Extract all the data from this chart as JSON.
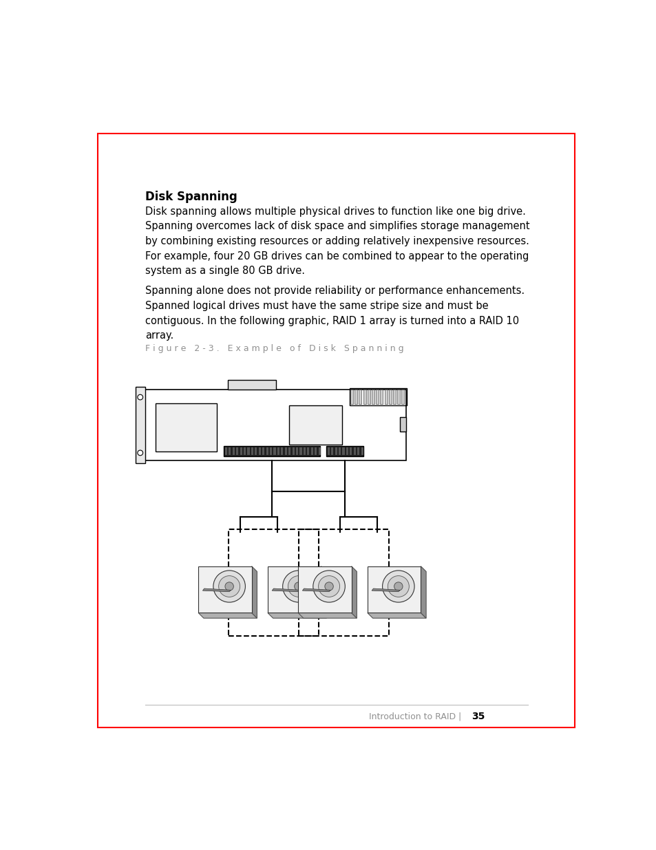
{
  "bg_color": "#ffffff",
  "border_color": "#ff0000",
  "border_linewidth": 1.5,
  "title": "Disk Spanning",
  "title_fontsize": 12,
  "body_text_1": "Disk spanning allows multiple physical drives to function like one big drive.\nSpanning overcomes lack of disk space and simplifies storage management\nby combining existing resources or adding relatively inexpensive resources.\nFor example, four 20 GB drives can be combined to appear to the operating\nsystem as a single 80 GB drive.",
  "body_text_2": "Spanning alone does not provide reliability or performance enhancements.\nSpanned logical drives must have the same stripe size and must be\ncontiguous. In the following graphic, RAID 1 array is turned into a RAID 10\narray.",
  "figure_caption": "F i g u r e   2 - 3 .   E x a m p l e   o f   D i s k   S p a n n i n g",
  "footer_text": "Introduction to RAID",
  "footer_page": "35",
  "text_color": "#000000",
  "caption_color": "#909090",
  "footer_color": "#909090",
  "body_fontsize": 10.5,
  "caption_fontsize": 9,
  "footer_fontsize": 9
}
